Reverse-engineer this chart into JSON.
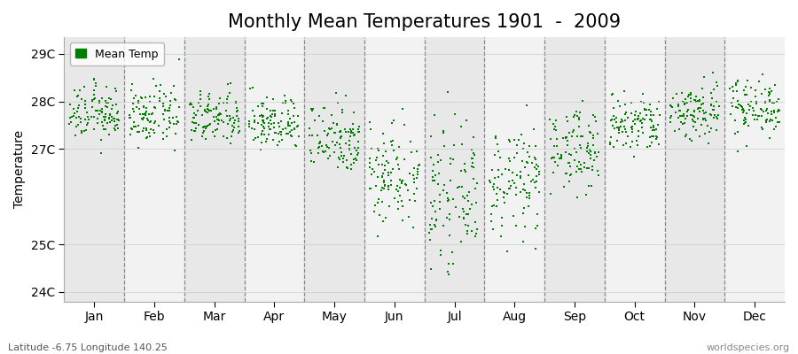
{
  "title": "Monthly Mean Temperatures 1901  -  2009",
  "ylabel": "Temperature",
  "ylim": [
    23.8,
    29.35
  ],
  "yticks": [
    24,
    25,
    27,
    28,
    29
  ],
  "ytick_labels": [
    "24C",
    "25C",
    "27C",
    "28C",
    "29C"
  ],
  "months": [
    "Jan",
    "Feb",
    "Mar",
    "Apr",
    "May",
    "Jun",
    "Jul",
    "Aug",
    "Sep",
    "Oct",
    "Nov",
    "Dec"
  ],
  "n_years": 109,
  "marker_color": "#008000",
  "marker_size": 4,
  "bg_odd": "#e8e8e8",
  "bg_even": "#f2f2f2",
  "fig_bg": "#ffffff",
  "legend_label": "Mean Temp",
  "bottom_left": "Latitude -6.75 Longitude 140.25",
  "bottom_right": "worldspecies.org",
  "month_means": [
    27.75,
    27.7,
    27.65,
    27.55,
    27.25,
    26.5,
    26.0,
    26.3,
    27.0,
    27.5,
    27.8,
    27.9
  ],
  "month_stds": [
    0.28,
    0.3,
    0.28,
    0.28,
    0.38,
    0.55,
    0.65,
    0.55,
    0.42,
    0.32,
    0.32,
    0.3
  ],
  "title_fontsize": 15,
  "axis_fontsize": 10,
  "label_fontsize": 10
}
